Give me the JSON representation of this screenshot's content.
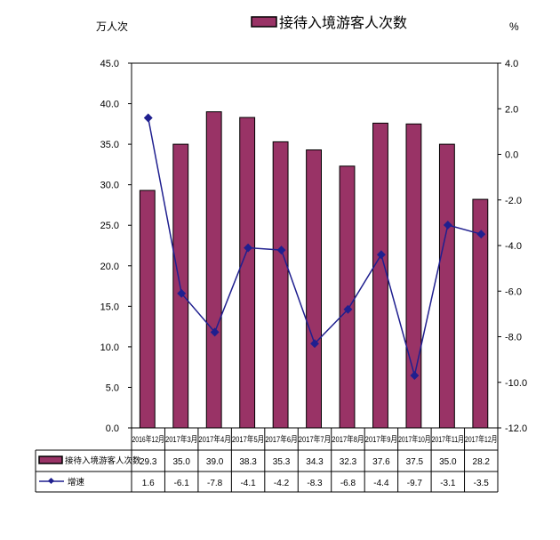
{
  "chart_data": {
    "type": "bar+line",
    "legend_top": "接待入境游客人次数",
    "left_unit": "万人次",
    "right_unit": "%",
    "categories": [
      "2016年12月",
      "2017年3月",
      "2017年4月",
      "2017年5月",
      "2017年6月",
      "2017年7月",
      "2017年8月",
      "2017年9月",
      "2017年10月",
      "2017年11月",
      "2017年12月"
    ],
    "series": [
      {
        "name": "接待入境游客人次数",
        "type": "bar",
        "axis": "left",
        "color": "#993366",
        "values": [
          29.3,
          35.0,
          39.0,
          38.3,
          35.3,
          34.3,
          32.3,
          37.6,
          37.5,
          35.0,
          28.2
        ],
        "labels": [
          "29.3",
          "35.0",
          "39.0",
          "38.3",
          "35.3",
          "34.3",
          "32.3",
          "37.6",
          "37.5",
          "35.0",
          "28.2"
        ]
      },
      {
        "name": "增速",
        "type": "line",
        "axis": "right",
        "color": "#1F1F8F",
        "values": [
          1.6,
          -6.1,
          -7.8,
          -4.1,
          -4.2,
          -8.3,
          -6.8,
          -4.4,
          -9.7,
          -3.1,
          -3.5
        ],
        "labels": [
          "1.6",
          "-6.1",
          "-7.8",
          "-4.1",
          "-4.2",
          "-8.3",
          "-6.8",
          "-4.4",
          "-9.7",
          "-3.1",
          "-3.5"
        ]
      }
    ],
    "left_axis": {
      "range": [
        0,
        45
      ],
      "ticks": [
        "0.0",
        "5.0",
        "10.0",
        "15.0",
        "20.0",
        "25.0",
        "30.0",
        "35.0",
        "40.0",
        "45.0"
      ]
    },
    "right_axis": {
      "range": [
        -12,
        4
      ],
      "ticks": [
        "-12.0",
        "-10.0",
        "-8.0",
        "-6.0",
        "-4.0",
        "-2.0",
        "0.0",
        "2.0",
        "4.0"
      ]
    },
    "grid": false,
    "legend_placement": "top",
    "data_table": true
  }
}
